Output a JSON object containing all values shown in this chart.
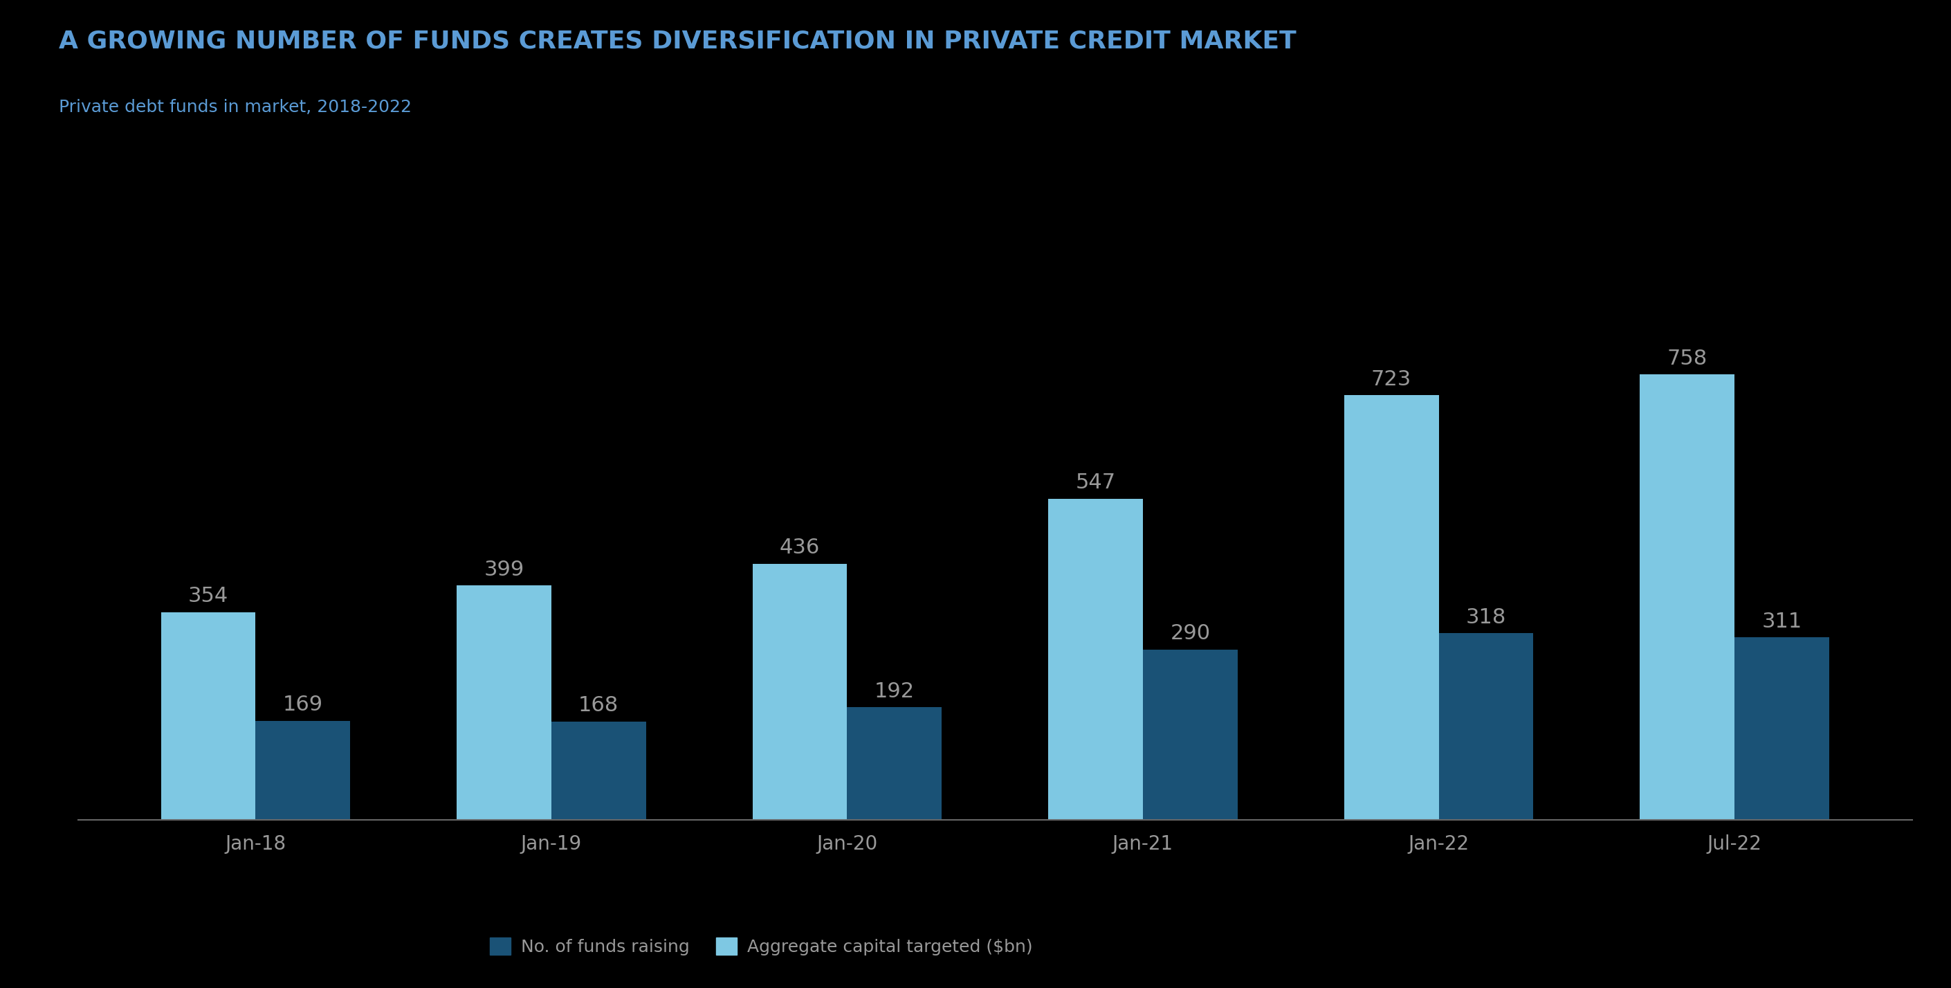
{
  "title": "A GROWING NUMBER OF FUNDS CREATES DIVERSIFICATION IN PRIVATE CREDIT MARKET",
  "subtitle": "Private debt funds in market, 2018-2022",
  "categories": [
    "Jan-18",
    "Jan-19",
    "Jan-20",
    "Jan-21",
    "Jan-22",
    "Jul-22"
  ],
  "aggregate_capital": [
    354,
    399,
    436,
    547,
    723,
    758
  ],
  "num_funds": [
    169,
    168,
    192,
    290,
    318,
    311
  ],
  "color_light_blue": "#7EC8E3",
  "color_dark_blue": "#1A5276",
  "background_color": "#000000",
  "title_color": "#5B9BD5",
  "subtitle_color": "#5B9BD5",
  "bar_label_color": "#999999",
  "tick_color": "#999999",
  "legend_label1": "No. of funds raising",
  "legend_label2": "Aggregate capital targeted ($bn)",
  "bar_width": 0.32,
  "title_fontsize": 26,
  "subtitle_fontsize": 18,
  "tick_fontsize": 20,
  "bar_label_fontsize": 22,
  "legend_fontsize": 18
}
